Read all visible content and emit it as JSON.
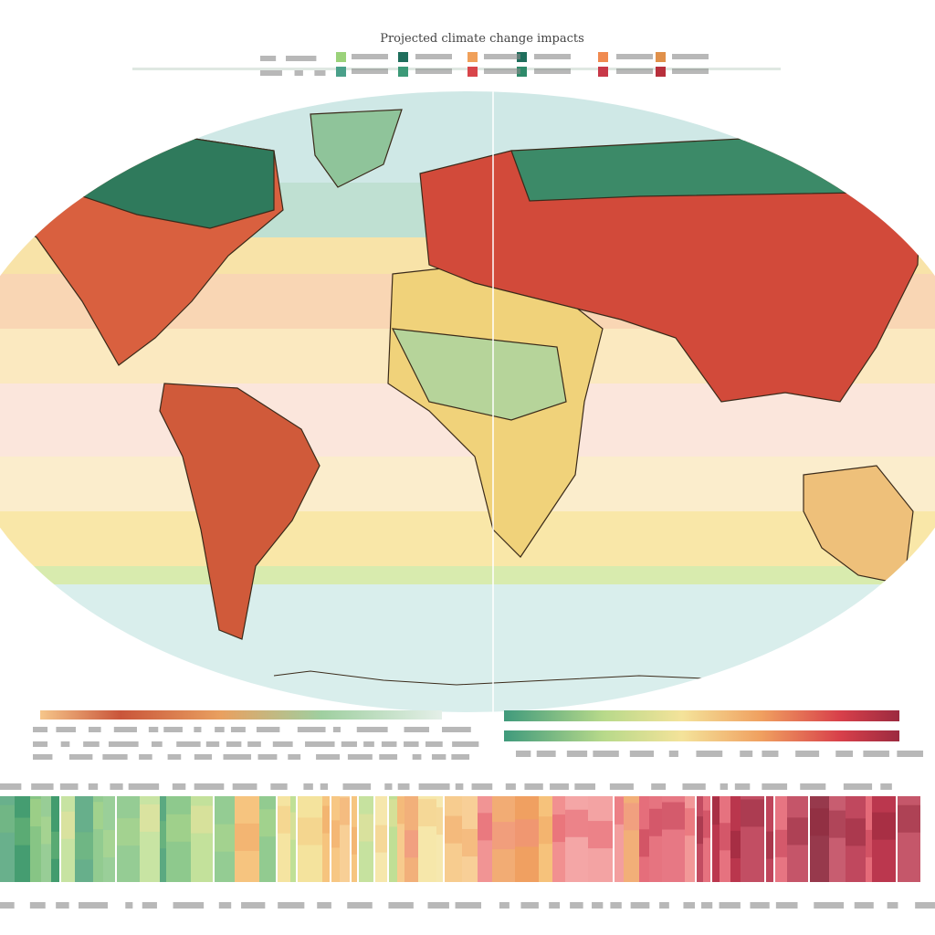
{
  "header": {
    "title": "Projected climate change impacts"
  }
}
